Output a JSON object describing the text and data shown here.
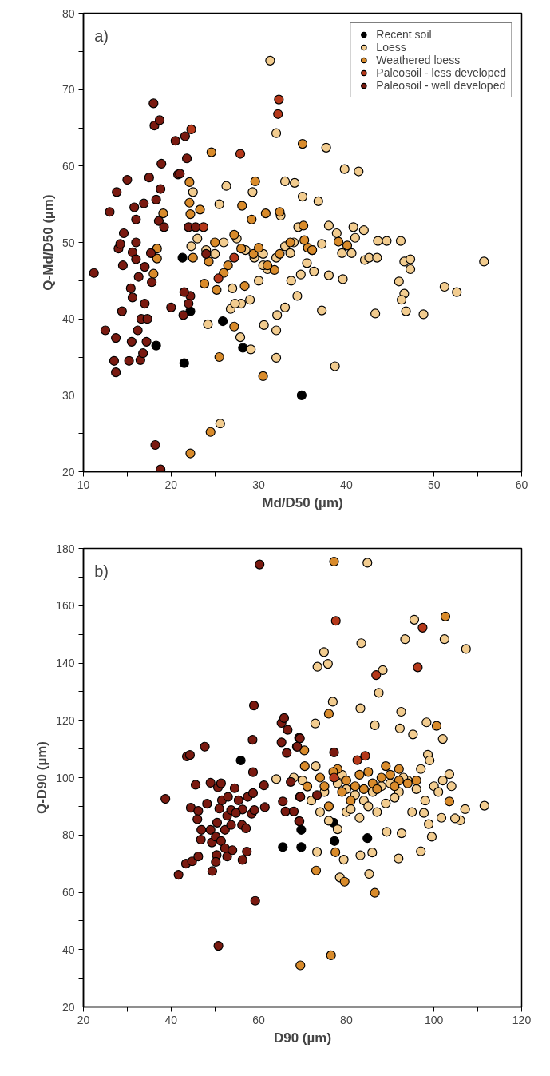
{
  "chart_data": [
    {
      "type": "scatter",
      "xlabel": "Md/D50 (µm)",
      "ylabel": "Q-Md/D50 (µm)",
      "annotations": [
        "a)"
      ],
      "marker": "circle",
      "legend": "top right",
      "grid": false,
      "xlim": [
        10,
        60
      ],
      "ylim": [
        20,
        80
      ],
      "xticks": [
        10,
        {
          "value": 15,
          "label": null
        },
        20,
        {
          "value": 25,
          "label": null
        },
        30,
        {
          "value": 35,
          "label": null
        },
        40,
        {
          "value": 45,
          "label": null
        },
        50,
        {
          "value": 55,
          "label": null
        },
        60
      ],
      "yticks": [
        20,
        {
          "value": 25,
          "label": null
        },
        30,
        {
          "value": 35,
          "label": null
        },
        40,
        {
          "value": 45,
          "label": null
        },
        50,
        {
          "value": 55,
          "label": null
        },
        60,
        {
          "value": 65,
          "label": null
        },
        70,
        {
          "value": 75,
          "label": null
        },
        80
      ],
      "series": [
        {
          "name": "Recent soil",
          "color": "#000000",
          "x": [
            18.3,
            21.5,
            22.2,
            21.3,
            25.9,
            28.2,
            34.9
          ],
          "values": [
            36.5,
            34.2,
            41,
            48,
            39.7,
            36.2,
            30
          ]
        },
        {
          "name": "Loess",
          "color": "#f2cc8f",
          "x": [
            31.3,
            32,
            37.7,
            39.8,
            41.4,
            26.3,
            22.5,
            29.3,
            33,
            34.1,
            35,
            36.8,
            25.5,
            32.5,
            38,
            40.8,
            42,
            43.6,
            44.6,
            46.2,
            41,
            38.9,
            36.1,
            37.2,
            39.5,
            40.6,
            42.1,
            42.6,
            43.5,
            46.6,
            47.3,
            47.3,
            46,
            46.6,
            46.3,
            46.8,
            48.8,
            43.3,
            51.2,
            52.6,
            55.7,
            37.2,
            38.7,
            39.6,
            38,
            36.3,
            34.8,
            35.5,
            33.7,
            34.4,
            33,
            32.1,
            32,
            32,
            30.6,
            27.9,
            29.1,
            24.2,
            25.6,
            27,
            28,
            29,
            30,
            31,
            24,
            25,
            26,
            27.5,
            28.5,
            29.5,
            30.5,
            32,
            33,
            34,
            23,
            22.3,
            26.8,
            27.3,
            34.5,
            30.5,
            33.6
          ],
          "values": [
            73.8,
            64.3,
            62.4,
            59.6,
            59.3,
            57.4,
            56.6,
            56.6,
            58,
            57.8,
            56,
            55.4,
            55,
            53.5,
            52.2,
            52,
            51.6,
            50.2,
            50.2,
            50.2,
            50.6,
            51.2,
            49,
            49.8,
            48.6,
            48.6,
            47.7,
            48,
            48,
            47.5,
            47.8,
            46.5,
            44.9,
            43.3,
            42.5,
            41,
            40.6,
            40.7,
            44.2,
            43.5,
            47.5,
            41.1,
            33.8,
            45.2,
            45.7,
            46.2,
            45.8,
            47.3,
            45,
            43,
            41.5,
            40.5,
            38.5,
            34.9,
            39.2,
            37.6,
            36,
            39.3,
            26.3,
            44,
            42,
            42.5,
            45,
            46.5,
            49,
            48.5,
            50,
            50.5,
            49,
            48,
            48.5,
            48,
            49.5,
            50,
            50.5,
            49.5,
            41.3,
            42,
            52,
            47,
            48.6
          ]
        },
        {
          "name": "Weathered loess",
          "color": "#d98b2b",
          "x": [
            24.6,
            35,
            22.1,
            29.6,
            22.1,
            22.2,
            23.3,
            28.1,
            29.2,
            30.8,
            32.4,
            35.1,
            19.1,
            18.4,
            18.4,
            18,
            22.5,
            24.3,
            25,
            26.5,
            27.2,
            28,
            29.4,
            31.8,
            32.4,
            33.6,
            35.6,
            36.1,
            35.2,
            39.1,
            40.1,
            25.2,
            27.2,
            28.4,
            31,
            24.5,
            22.2,
            30.5,
            23.8,
            26,
            30,
            25.5
          ],
          "values": [
            61.8,
            62.9,
            57.9,
            58,
            55.2,
            53.7,
            54.3,
            54.8,
            53,
            53.8,
            54,
            52.2,
            53.8,
            49.2,
            47.9,
            45.9,
            48,
            47.5,
            50,
            47,
            51,
            49.2,
            48.5,
            46.4,
            48.5,
            50,
            49.3,
            49,
            50.3,
            50.1,
            49.6,
            43.8,
            39,
            44.3,
            47,
            25.2,
            22.4,
            32.5,
            44.6,
            46,
            49.3,
            35
          ]
        },
        {
          "name": "Paleosoil - less developed",
          "color": "#b5381a",
          "x": [
            22.3,
            27.9,
            32.3,
            32.2,
            27.2,
            25.4,
            23.7
          ],
          "values": [
            64.8,
            61.6,
            68.7,
            66.8,
            48,
            45.3,
            52
          ]
        },
        {
          "name": "Paleosoil - well developed",
          "color": "#7a1a10",
          "x": [
            11.2,
            12.5,
            13,
            13.5,
            13.7,
            13.7,
            13.8,
            14,
            14.4,
            14.6,
            14.5,
            15,
            15.2,
            15.4,
            15.5,
            15.6,
            15.6,
            15.8,
            16,
            16,
            16,
            16.2,
            16.3,
            16.5,
            16.6,
            16.8,
            17,
            17,
            17.2,
            17.5,
            17.7,
            17.8,
            18,
            18.1,
            18.3,
            18.7,
            18.6,
            18.8,
            18.9,
            19.2,
            18.2,
            18.8,
            20,
            20.5,
            20.8,
            21,
            21.4,
            21.6,
            21.8,
            22,
            22.2,
            22.8,
            24,
            22,
            21.5,
            17.3,
            14.2,
            16.9
          ],
          "values": [
            46,
            38.5,
            54,
            34.5,
            33,
            37.5,
            56.6,
            49.2,
            41,
            51.2,
            47,
            58.2,
            34.5,
            44,
            37,
            42.8,
            48.7,
            54.6,
            53,
            50,
            47.8,
            38.5,
            45.5,
            34.6,
            40,
            35.5,
            46.8,
            42,
            37,
            58.5,
            48.6,
            44.8,
            68.2,
            65.3,
            55.6,
            66,
            52.8,
            57,
            60.3,
            52,
            23.5,
            20.3,
            41.5,
            63.3,
            58.9,
            59,
            40.5,
            63.9,
            61,
            52,
            43,
            52,
            48.5,
            42,
            43.5,
            40,
            49.8,
            55.1
          ]
        }
      ]
    },
    {
      "type": "scatter",
      "xlabel": "D90 (µm)",
      "ylabel": "Q-D90 (µm)",
      "annotations": [
        "b)"
      ],
      "marker": "circle",
      "grid": false,
      "xlim": [
        20,
        120
      ],
      "ylim": [
        20,
        180
      ],
      "xticks": [
        20,
        {
          "value": 30,
          "label": null
        },
        40,
        {
          "value": 50,
          "label": null
        },
        60,
        {
          "value": 70,
          "label": null
        },
        80,
        {
          "value": 90,
          "label": null
        },
        100,
        {
          "value": 110,
          "label": null
        },
        120
      ],
      "yticks": [
        20,
        {
          "value": 30,
          "label": null
        },
        40,
        {
          "value": 50,
          "label": null
        },
        60,
        {
          "value": 70,
          "label": null
        },
        80,
        {
          "value": 90,
          "label": null
        },
        100,
        {
          "value": 110,
          "label": null
        },
        120,
        {
          "value": 130,
          "label": null
        },
        140,
        {
          "value": 150,
          "label": null
        },
        160,
        {
          "value": 170,
          "label": null
        },
        180
      ],
      "series": [
        {
          "color": "#000000",
          "x": [
            69.7,
            69.7,
            65.5,
            55.9,
            77.3,
            77.1,
            84.8
          ],
          "values": [
            81.8,
            75.8,
            75.8,
            106,
            77.9,
            84.3,
            78.9
          ]
        },
        {
          "color": "#f2cc8f",
          "x": [
            84.8,
            95.5,
            93.4,
            102.4,
            107.3,
            83.4,
            74.9,
            73.4,
            75.8,
            88.3,
            87.4,
            76.9,
            83.2,
            92.5,
            72.9,
            86.5,
            92.2,
            98.3,
            95.2,
            102,
            98.6,
            103.5,
            111.5,
            107.1,
            106,
            104.8,
            101.7,
            99.5,
            98.8,
            97.7,
            97,
            91.9,
            92.6,
            89.2,
            85.2,
            78.5,
            79.4,
            85.9,
            83.2,
            73.3,
            75,
            78,
            80,
            82,
            84,
            86,
            88,
            90,
            92,
            94,
            96,
            98,
            100,
            102,
            72,
            70,
            68,
            80,
            83,
            87,
            91,
            95,
            76,
            78,
            81,
            85,
            89,
            93,
            97,
            73,
            79,
            74,
            64,
            99,
            101,
            104
          ],
          "values": [
            175,
            155.1,
            148.3,
            148.3,
            144.9,
            146.9,
            143.8,
            138.7,
            139.7,
            137.5,
            129.6,
            126.5,
            124.2,
            123,
            118.9,
            118.3,
            117.2,
            119.3,
            115.1,
            113.5,
            108,
            101.2,
            90.2,
            89,
            85.1,
            85.8,
            86,
            79.4,
            83.8,
            87.7,
            74.3,
            71.8,
            80.6,
            81.1,
            66.4,
            65.2,
            71.4,
            73.9,
            72.9,
            74.1,
            95,
            98,
            96,
            94,
            92,
            95,
            97,
            98,
            95,
            99,
            96,
            92,
            97,
            99,
            92,
            99,
            100,
            88,
            86,
            88,
            93,
            88,
            85,
            82,
            89,
            90,
            91,
            100,
            103,
            104,
            101,
            88,
            99.5,
            106,
            95,
            97
          ]
        },
        {
          "color": "#d98b2b",
          "x": [
            77.2,
            102.6,
            76,
            100.6,
            73.1,
            79.6,
            86.5,
            69.5,
            76.5,
            103.5,
            77.5,
            71.1,
            70.5,
            70.4,
            74,
            78,
            80,
            82,
            83,
            85,
            86,
            88,
            90,
            92,
            94,
            79,
            84,
            81,
            76,
            92,
            96,
            75,
            87,
            89,
            77,
            91
          ],
          "values": [
            175.4,
            156.2,
            122.3,
            118.1,
            67.6,
            63.7,
            59.8,
            34.5,
            38,
            91.7,
            74,
            96.9,
            104,
            109.5,
            100,
            103,
            99,
            97,
            101,
            102,
            98,
            100,
            101,
            99,
            98,
            95,
            96,
            92,
            90,
            103,
            99,
            97,
            96,
            104,
            102,
            97
          ]
        },
        {
          "color": "#b5381a",
          "x": [
            77.2,
            82.5,
            84.3,
            77.6,
            97.4,
            96.3,
            86.8
          ],
          "values": [
            100,
            106.1,
            107.6,
            154.7,
            152.3,
            138.5,
            135.8
          ]
        },
        {
          "color": "#7a1a10",
          "x": [
            60.2,
            38.7,
            41.7,
            43.4,
            44.8,
            46.2,
            43.6,
            44.3,
            47.7,
            45.6,
            44.5,
            46.2,
            46,
            48.2,
            49,
            50.7,
            51.4,
            46.9,
            49,
            46.8,
            49.3,
            50.5,
            50.2,
            51.4,
            52.3,
            52.8,
            50.4,
            50.2,
            49.4,
            50.8,
            54,
            52.3,
            52.8,
            53.7,
            53.7,
            51.6,
            53,
            51,
            54.5,
            55.4,
            56.3,
            54.8,
            56.2,
            57.1,
            57.3,
            56.3,
            57.5,
            58.7,
            58.4,
            59,
            61.4,
            61.2,
            58.7,
            58.6,
            58.9,
            59.2,
            65.2,
            65.8,
            66.6,
            65.2,
            66.4,
            68.7,
            69.2,
            67.3,
            65.5,
            66.1,
            68,
            69.4,
            69.2,
            69.4,
            68.8,
            77.2,
            73.3,
            69.5,
            69.3
          ],
          "values": [
            174.4,
            92.6,
            66.1,
            70,
            70.8,
            72.5,
            107.4,
            107.9,
            110.8,
            97.5,
            89.5,
            88.4,
            85.5,
            90.9,
            98.2,
            96.6,
            98,
            81.8,
            81.8,
            78.4,
            77.4,
            84.3,
            79.4,
            77.9,
            75.4,
            72.5,
            73,
            70.6,
            67.4,
            41.3,
            74.7,
            81.8,
            86.7,
            83.5,
            88.7,
            92.1,
            93.3,
            89.2,
            96.3,
            92.1,
            88.9,
            87.7,
            83.5,
            82.3,
            74.2,
            71.3,
            93.3,
            94.6,
            87.4,
            88.7,
            89.7,
            97.3,
            101.9,
            113.2,
            125.2,
            57,
            119.1,
            120.8,
            116.7,
            112.3,
            108.6,
            110.8,
            113.9,
            98.5,
            91.7,
            88.2,
            88.2,
            93.3,
            84.8,
            113.7,
            110.8,
            108.8,
            93.9,
            93.3,
            84.8
          ]
        }
      ]
    }
  ]
}
